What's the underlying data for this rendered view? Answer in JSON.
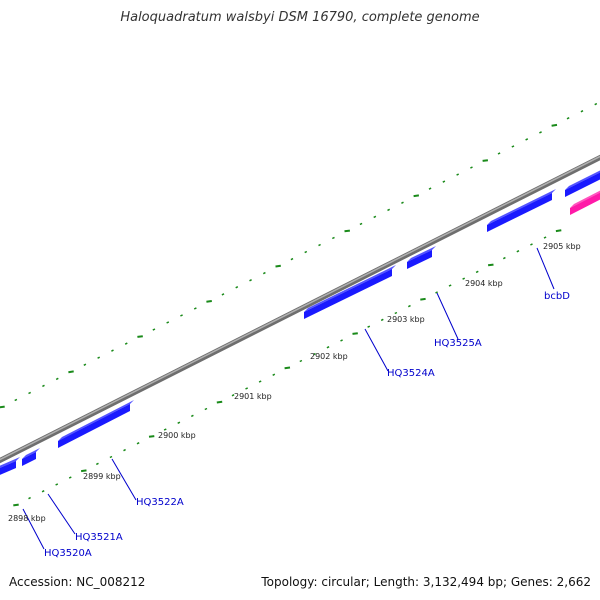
{
  "title": "Haloquadratum walsbyi DSM 16790, complete genome",
  "footer": {
    "accession": "Accession: NC_008212",
    "summary": "Topology: circular; Length: 3,132,494 bp; Genes: 2,662"
  },
  "colors": {
    "backbone": "#8c8c8c",
    "gene_forward": "#1a1aff",
    "gene_reverse_pink": "#ff1aa8",
    "ticks": "#1a8a1a",
    "label": "#0000cc"
  },
  "scale_labels": [
    "2898 kbp",
    "2899 kbp",
    "2900 kbp",
    "2901 kbp",
    "2902 kbp",
    "2903 kbp",
    "2904 kbp",
    "2905 kbp"
  ],
  "gene_labels": [
    "HQ3520A",
    "HQ3521A",
    "HQ3522A",
    "HQ3524A",
    "HQ3525A",
    "bcbD"
  ]
}
